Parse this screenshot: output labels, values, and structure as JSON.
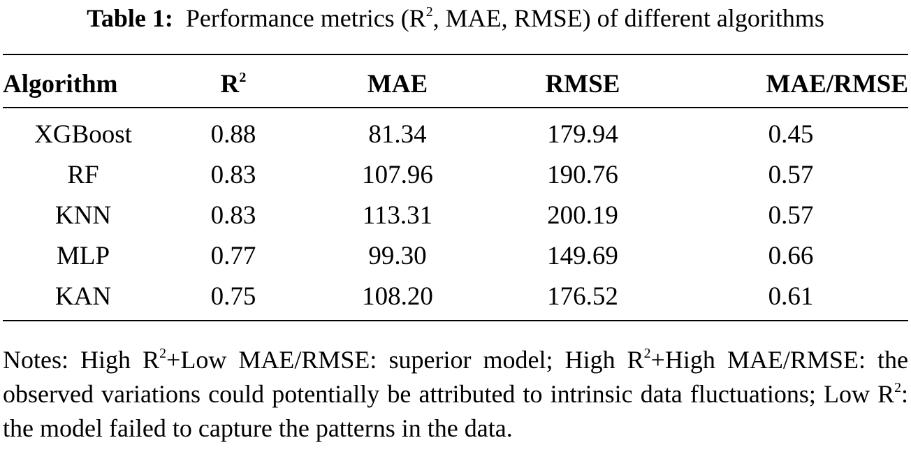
{
  "caption": {
    "label": "Table 1:",
    "text_before_sup": "Performance metrics (R",
    "sup": "2",
    "text_after_sup": ", MAE, RMSE) of different algorithms"
  },
  "table": {
    "headers": {
      "algorithm": "Algorithm",
      "r2_base": "R",
      "r2_sup": "2",
      "mae": "MAE",
      "rmse": "RMSE",
      "ratio": "MAE/RMSE"
    },
    "rows": [
      {
        "algorithm": "XGBoost",
        "r2": "0.88",
        "mae": "81.34",
        "rmse": "179.94",
        "ratio": "0.45"
      },
      {
        "algorithm": "RF",
        "r2": "0.83",
        "mae": "107.96",
        "rmse": "190.76",
        "ratio": "0.57"
      },
      {
        "algorithm": "KNN",
        "r2": "0.83",
        "mae": "113.31",
        "rmse": "200.19",
        "ratio": "0.57"
      },
      {
        "algorithm": "MLP",
        "r2": "0.77",
        "mae": "99.30",
        "rmse": "149.69",
        "ratio": "0.66"
      },
      {
        "algorithm": "KAN",
        "r2": "0.75",
        "mae": "108.20",
        "rmse": "176.52",
        "ratio": "0.61"
      }
    ]
  },
  "notes": {
    "part1": "Notes: High R",
    "sup1": "2",
    "part2": "+Low MAE/RMSE: superior model; High R",
    "sup2": "2",
    "part3": "+High MAE/RMSE: the observed variations could potentially be attributed to intrinsic data fluctuations; Low R",
    "sup3": "2",
    "part4": ": the model failed to capture the patterns in the data."
  }
}
